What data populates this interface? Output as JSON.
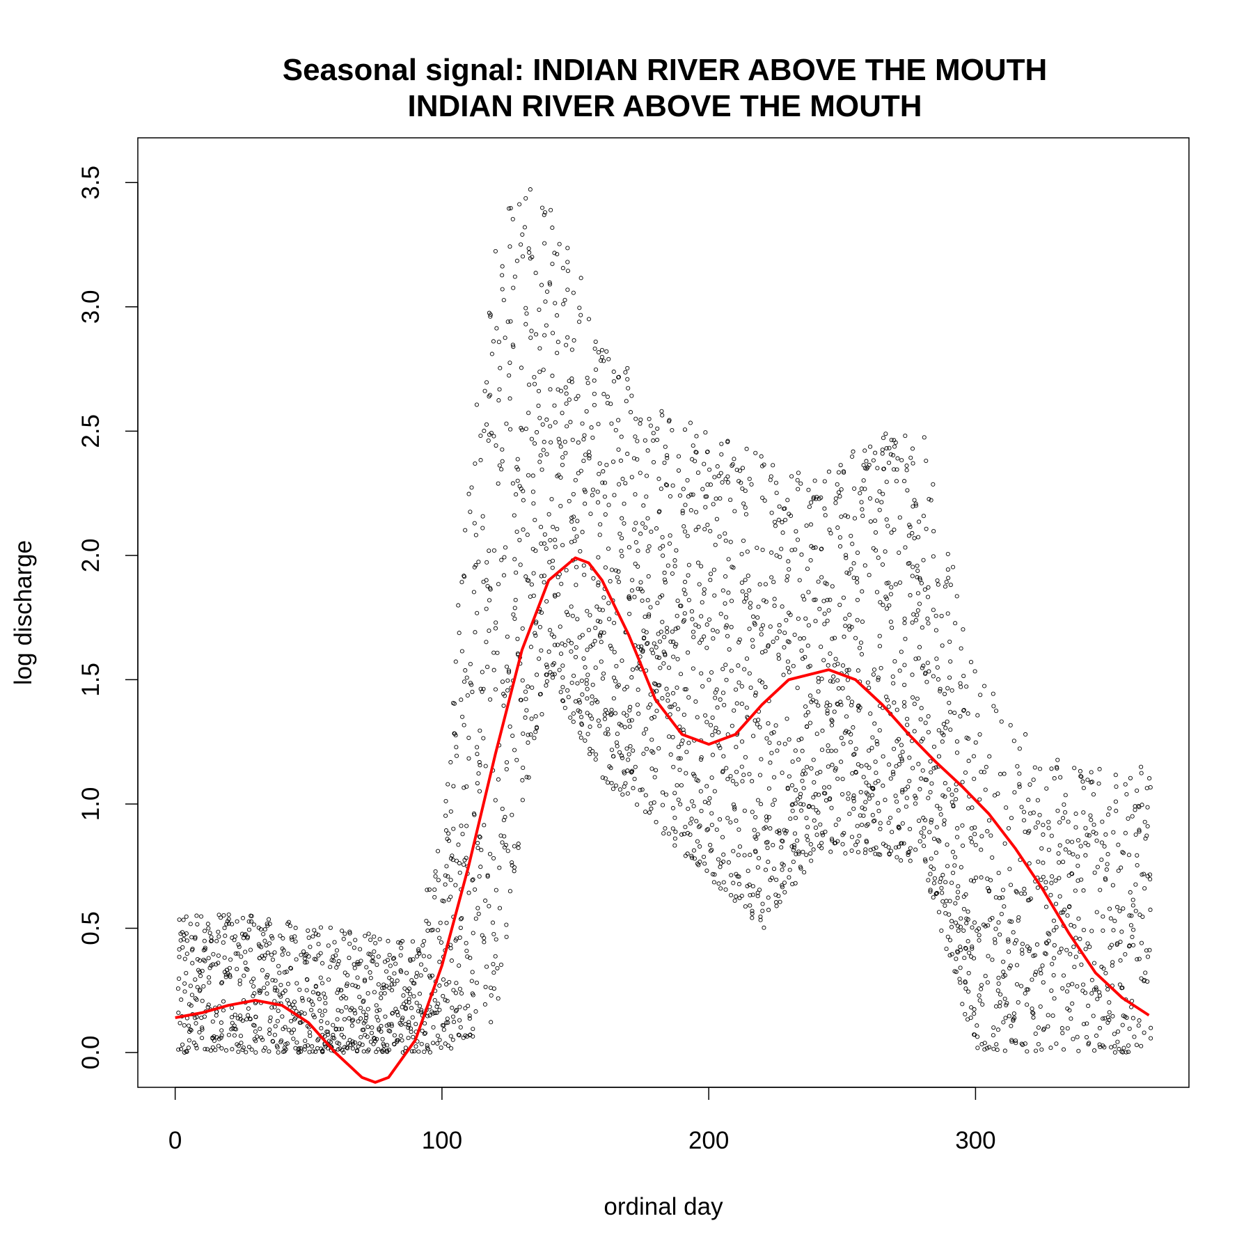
{
  "chart_data": {
    "type": "scatter",
    "title": "Seasonal signal: INDIAN RIVER ABOVE THE MOUTH",
    "subtitle": "INDIAN RIVER ABOVE THE MOUTH",
    "xlabel": "ordinal day",
    "ylabel": "log discharge",
    "xlim": [
      -14,
      380
    ],
    "ylim": [
      -0.14,
      3.68
    ],
    "x_ticks": [
      0,
      100,
      200,
      300
    ],
    "y_ticks": [
      0.0,
      0.5,
      1.0,
      1.5,
      2.0,
      2.5,
      3.0,
      3.5
    ],
    "x_tick_labels": [
      "0",
      "100",
      "200",
      "300"
    ],
    "y_tick_labels": [
      "0.0",
      "0.5",
      "1.0",
      "1.5",
      "2.0",
      "2.5",
      "3.0",
      "3.5"
    ],
    "grid": false,
    "legend": "none",
    "point_color": "#000000",
    "smooth_color": "#ff0000",
    "series": [
      {
        "role": "daily observations",
        "style": "open circles",
        "description": "observed log discharge per year, plotted by ordinal day (approx. 30 years, 365 days each)",
        "x": [
          1,
          30,
          60,
          90,
          100,
          110,
          120,
          130,
          140,
          150,
          160,
          180,
          200,
          220,
          240,
          260,
          280,
          300,
          320,
          340,
          365
        ],
        "y_range_low": [
          0.0,
          0.0,
          0.0,
          0.0,
          0.0,
          0.05,
          0.1,
          1.0,
          1.5,
          1.3,
          1.1,
          0.9,
          0.7,
          0.5,
          0.8,
          0.8,
          0.75,
          0.0,
          0.0,
          0.0,
          0.0
        ],
        "y_range_high": [
          0.6,
          0.55,
          0.5,
          0.45,
          1.0,
          2.4,
          3.35,
          3.5,
          3.45,
          3.2,
          2.9,
          2.6,
          2.5,
          2.4,
          2.3,
          2.5,
          2.5,
          1.55,
          1.25,
          1.15,
          1.15
        ]
      },
      {
        "role": "seasonal smooth",
        "style": "red line",
        "x": [
          0,
          10,
          20,
          30,
          40,
          50,
          60,
          70,
          75,
          80,
          90,
          100,
          110,
          120,
          130,
          140,
          150,
          155,
          160,
          170,
          180,
          190,
          200,
          210,
          220,
          230,
          245,
          255,
          265,
          275,
          285,
          295,
          305,
          315,
          325,
          335,
          345,
          355,
          365
        ],
        "y": [
          0.14,
          0.16,
          0.19,
          0.21,
          0.19,
          0.12,
          0.0,
          -0.1,
          -0.12,
          -0.1,
          0.05,
          0.35,
          0.75,
          1.2,
          1.62,
          1.9,
          1.99,
          1.97,
          1.9,
          1.68,
          1.42,
          1.28,
          1.24,
          1.28,
          1.4,
          1.5,
          1.54,
          1.5,
          1.4,
          1.28,
          1.17,
          1.07,
          0.96,
          0.82,
          0.66,
          0.48,
          0.32,
          0.22,
          0.15
        ]
      }
    ]
  }
}
